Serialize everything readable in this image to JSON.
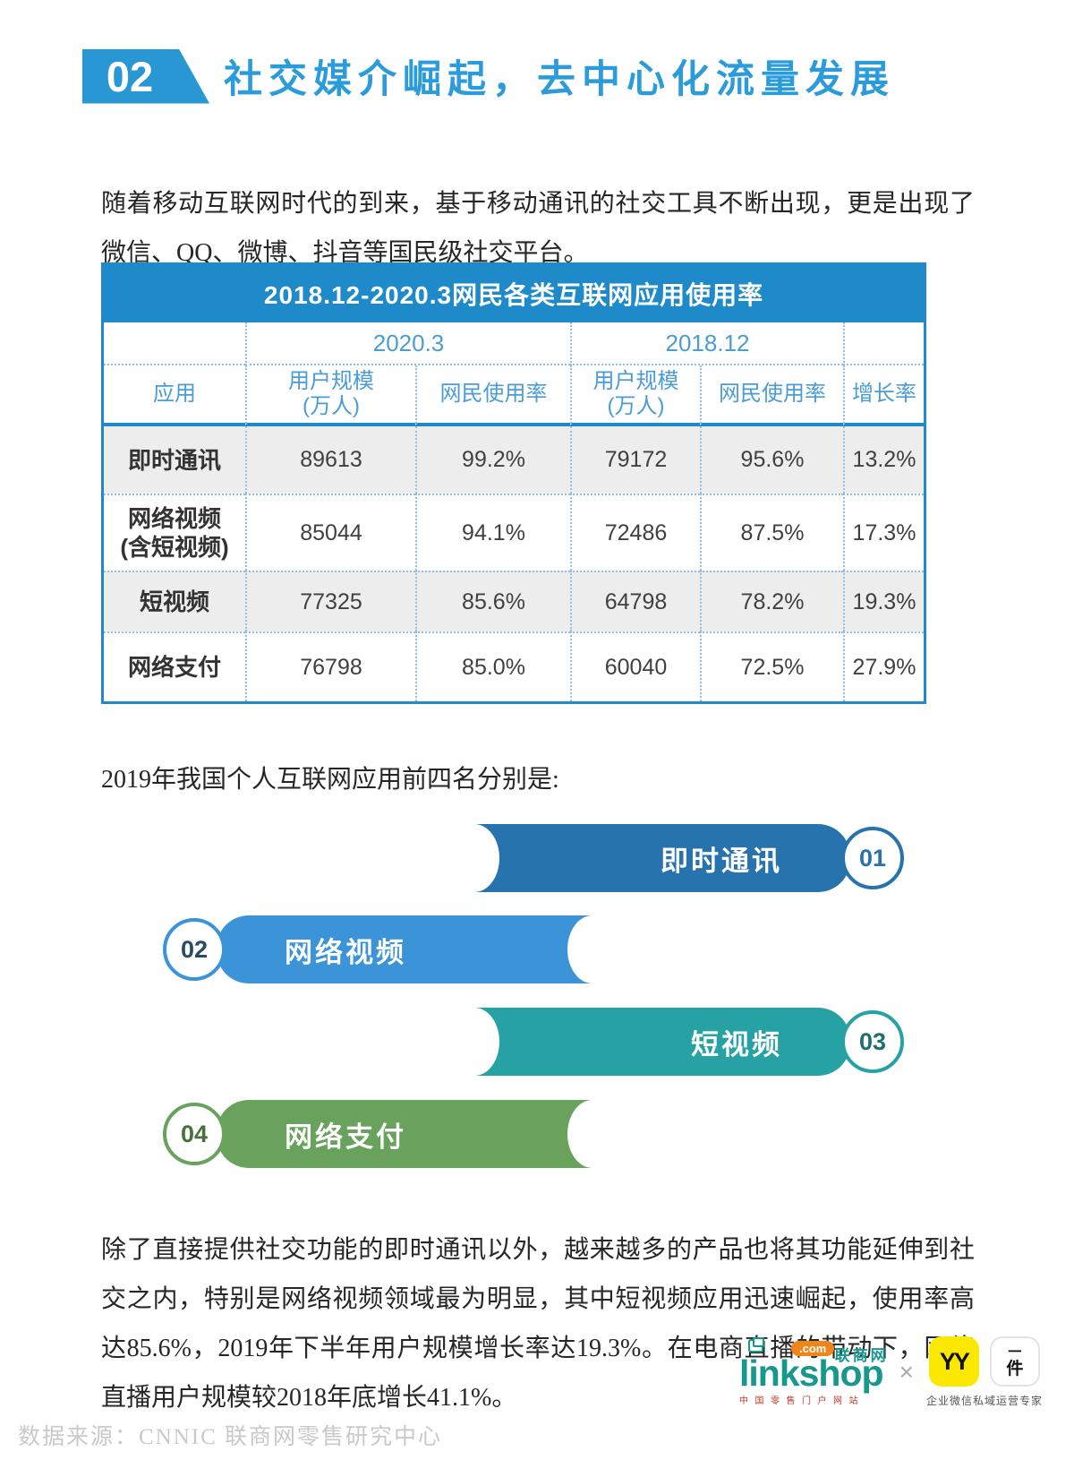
{
  "header": {
    "section_number": "02",
    "title": "社交媒介崛起，去中心化流量发展",
    "accent_color": "#2a97d5"
  },
  "paragraphs": {
    "p1": "随着移动互联网时代的到来，基于移动通讯的社交工具不断出现，更是出现了微信、QQ、微博、抖音等国民级社交平台。",
    "intro": "2019年我国个人互联网应用前四名分别是:",
    "p3": "除了直接提供社交功能的即时通讯以外，越来越多的产品也将其功能延伸到社交之内，特别是网络视频领域最为明显，其中短视频应用迅速崛起，使用率高达85.6%，2019年下半年用户规模增长率达19.3%。在电商直播的带动下，网络直播用户规模较2018年底增长41.1%。"
  },
  "table": {
    "title": "2018.12-2020.3网民各类互联网应用使用率",
    "title_bar_color": "#1e8aca",
    "header_text_color": "#4a9cd6",
    "period_headers": [
      "2020.3",
      "2018.12"
    ],
    "columns": {
      "app": "应用",
      "scale_l1": "用户规模",
      "scale_l2": "(万人)",
      "usage": "网民使用率",
      "growth": "增长率"
    },
    "rows": [
      {
        "app_l1": "即时通讯",
        "app_l2": "",
        "scale_2020": "89613",
        "usage_2020": "99.2%",
        "scale_2018": "79172",
        "usage_2018": "95.6%",
        "growth": "13.2%"
      },
      {
        "app_l1": "网络视频",
        "app_l2": "(含短视频)",
        "scale_2020": "85044",
        "usage_2020": "94.1%",
        "scale_2018": "72486",
        "usage_2018": "87.5%",
        "growth": "17.3%"
      },
      {
        "app_l1": "短视频",
        "app_l2": "",
        "scale_2020": "77325",
        "usage_2020": "85.6%",
        "scale_2018": "64798",
        "usage_2018": "78.2%",
        "growth": "19.3%"
      },
      {
        "app_l1": "网络支付",
        "app_l2": "",
        "scale_2020": "76798",
        "usage_2020": "85.0%",
        "scale_2018": "60040",
        "usage_2018": "72.5%",
        "growth": "27.9%"
      }
    ]
  },
  "ranking": {
    "items": [
      {
        "num": "01",
        "label": "即时通讯",
        "color": "#2673ad",
        "num_color": "#2a72ab",
        "direction": "right"
      },
      {
        "num": "02",
        "label": "网络视频",
        "color": "#3b94d8",
        "num_color": "#274a68",
        "direction": "left"
      },
      {
        "num": "03",
        "label": "短视频",
        "color": "#27a2a4",
        "num_color": "#1f6e70",
        "direction": "right"
      },
      {
        "num": "04",
        "label": "网络支付",
        "color": "#68a25d",
        "num_color": "#47703c",
        "direction": "left"
      }
    ]
  },
  "footer": {
    "source": "数据来源：CNNIC 联商网零售研究中心",
    "linkshop": {
      "wordmark": "linkshop",
      "com_badge": ".com",
      "cn_name": "联商网",
      "tagline": "中国零售门户网站",
      "brand_color": "#17988e",
      "badge_color": "#f08519"
    },
    "separator": "×",
    "yy": {
      "icon_label": "YY",
      "partner_l1": "一",
      "partner_l2": "件",
      "caption": "企业微信私域运营专家",
      "icon_color": "#fae800"
    },
    "icons": [
      "window-icon",
      "yy-app-icon",
      "yijian-app-icon"
    ]
  }
}
